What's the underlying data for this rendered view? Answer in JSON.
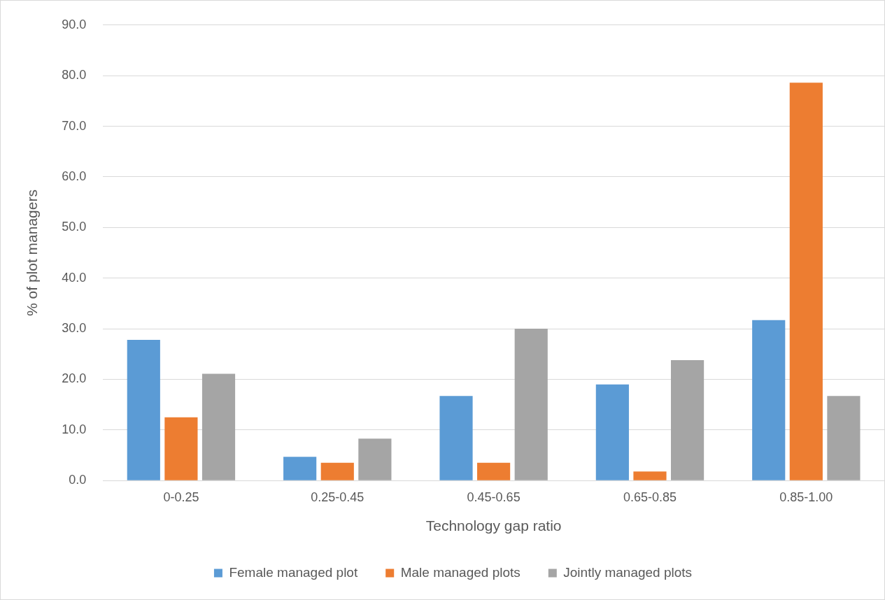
{
  "chart_data": {
    "type": "bar",
    "xlabel": "Technology gap ratio",
    "ylabel": "% of plot managers",
    "categories": [
      "0-0.25",
      "0.25-0.45",
      "0.45-0.65",
      "0.65-0.85",
      "0.85-1.00"
    ],
    "series": [
      {
        "name": "Female managed plot",
        "color": "#5b9bd5",
        "values": [
          27.8,
          4.7,
          16.7,
          19.0,
          31.7
        ]
      },
      {
        "name": "Male managed plots",
        "color": "#ed7d31",
        "values": [
          12.5,
          3.5,
          3.5,
          1.8,
          78.6
        ]
      },
      {
        "name": "Jointly managed plots",
        "color": "#a5a5a5",
        "values": [
          21.1,
          8.3,
          30.0,
          23.8,
          16.7
        ]
      }
    ],
    "ylim": [
      0,
      90
    ],
    "yticks": [
      {
        "value": 0,
        "label": "0.0"
      },
      {
        "value": 10,
        "label": "10.0"
      },
      {
        "value": 20,
        "label": "20.0"
      },
      {
        "value": 30,
        "label": "30.0"
      },
      {
        "value": 40,
        "label": "40.0"
      },
      {
        "value": 50,
        "label": "50.0"
      },
      {
        "value": 60,
        "label": "60.0"
      },
      {
        "value": 70,
        "label": "70.0"
      },
      {
        "value": 80,
        "label": "80.0"
      },
      {
        "value": 90,
        "label": "90.0"
      }
    ],
    "grid": "y",
    "legend": "bottom"
  }
}
